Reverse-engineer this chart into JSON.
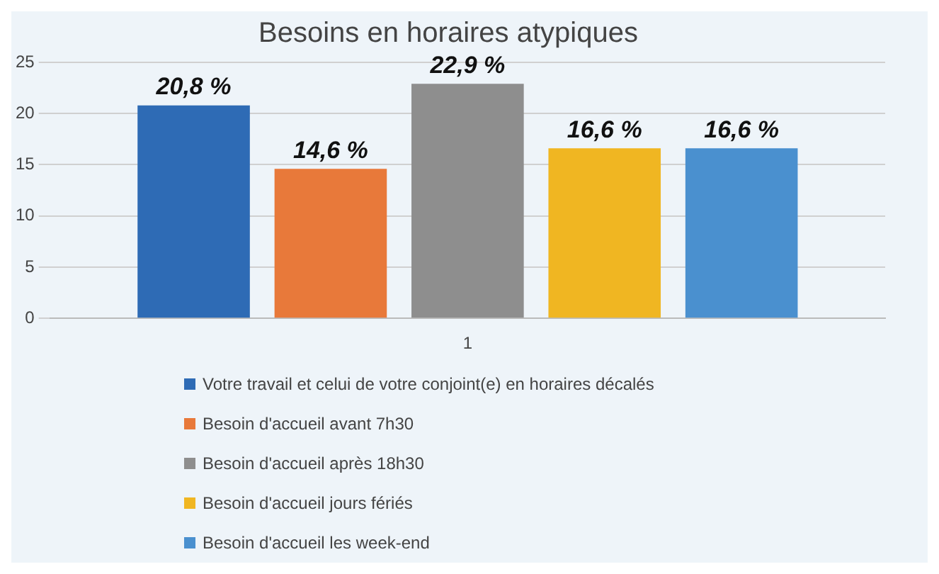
{
  "chart_data": {
    "type": "bar",
    "title": "Besoins en horaires atypiques",
    "categories": [
      "1"
    ],
    "series": [
      {
        "name": "Votre travail et celui de votre conjoint(e) en horaires décalés",
        "color": "#2e6bb5",
        "values": [
          20.8
        ],
        "value_labels": [
          "20,8 %"
        ]
      },
      {
        "name": "Besoin d'accueil avant 7h30",
        "color": "#e8793a",
        "values": [
          14.6
        ],
        "value_labels": [
          "14,6 %"
        ]
      },
      {
        "name": "Besoin d'accueil après 18h30",
        "color": "#8e8e8e",
        "values": [
          22.9
        ],
        "value_labels": [
          "22,9 %"
        ]
      },
      {
        "name": "Besoin d'accueil jours fériés",
        "color": "#f0b622",
        "values": [
          16.6
        ],
        "value_labels": [
          "16,6 %"
        ]
      },
      {
        "name": "Besoin d'accueil les week-end",
        "color": "#4a90cf",
        "values": [
          16.6
        ],
        "value_labels": [
          "16,6 %"
        ]
      }
    ],
    "ylim": [
      0,
      25
    ],
    "yticks": [
      0,
      5,
      10,
      15,
      20,
      25
    ],
    "grid": "y",
    "legend": "bottom"
  }
}
